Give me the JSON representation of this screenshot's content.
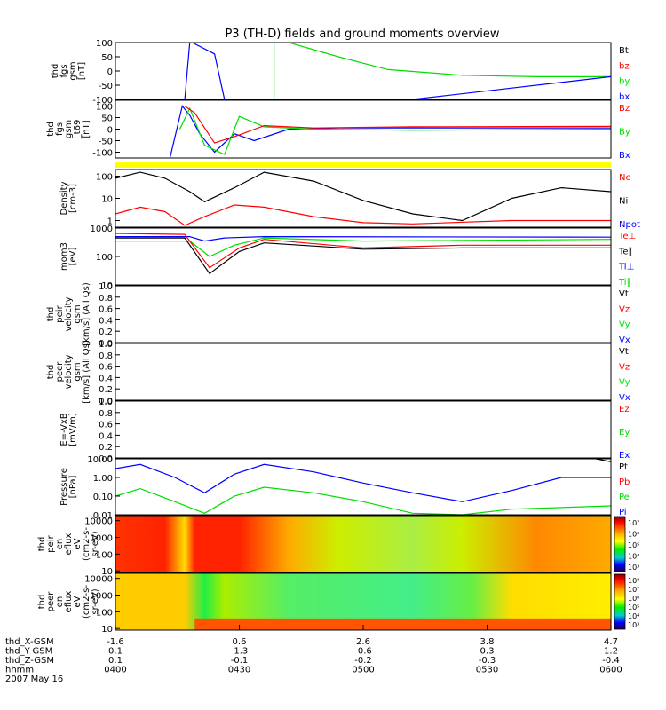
{
  "title": "P3 (TH-D) fields and ground moments overview",
  "colors": {
    "black": "#000000",
    "red": "#ff0000",
    "green": "#00dd00",
    "blue": "#0000ff",
    "yellow": "#ffff00",
    "ylabel": "#000000"
  },
  "time_ticks": [
    "0400",
    "0430",
    "0500",
    "0530",
    "0600"
  ],
  "footer": {
    "rows": [
      {
        "label": "thd_X-GSM",
        "values": [
          "-1.6",
          "0.6",
          "2.6",
          "3.8",
          "4.7"
        ]
      },
      {
        "label": "thd_Y-GSM",
        "values": [
          "0.1",
          "-1.3",
          "-0.6",
          "0.3",
          "1.2"
        ]
      },
      {
        "label": "thd_Z-GSM",
        "values": [
          "0.1",
          "-0.1",
          "-0.2",
          "-0.3",
          "-0.4"
        ]
      },
      {
        "label": "hhmm",
        "values": [
          "0400",
          "0430",
          "0500",
          "0530",
          "0600"
        ]
      }
    ],
    "date": "2007 May 16"
  },
  "chart_data": [
    {
      "type": "line",
      "id": "fgs",
      "ylabel": [
        "thd",
        "fgs",
        "gsm",
        "[nT]"
      ],
      "ylim": [
        -100,
        100
      ],
      "yticks": [
        "100",
        "50",
        "0",
        "-50",
        "-100"
      ],
      "legend": [
        {
          "name": "Bt",
          "color": "#000000"
        },
        {
          "name": "bz",
          "color": "#ff0000"
        },
        {
          "name": "by",
          "color": "#00dd00"
        },
        {
          "name": "bx",
          "color": "#0000ff"
        }
      ],
      "series": [
        {
          "name": "by",
          "color": "#00dd00",
          "x": [
            0.32,
            0.32,
            0.35,
            0.45,
            0.55,
            0.7,
            0.85,
            1.0
          ],
          "y": [
            -100,
            100,
            100,
            50,
            5,
            -15,
            -20,
            -20
          ]
        },
        {
          "name": "bx",
          "color": "#0000ff",
          "x": [
            0.14,
            0.15,
            0.155,
            0.2,
            0.22,
            0.6,
            0.8,
            1.0
          ],
          "y": [
            -100,
            100,
            100,
            60,
            -100,
            -100,
            -60,
            -20
          ]
        }
      ]
    },
    {
      "type": "line",
      "id": "fgs-sm",
      "ylabel": [
        "thd",
        "fgs",
        "gsm",
        "_t69",
        "[nT]"
      ],
      "ylim": [
        -125,
        125
      ],
      "yticks": [
        "100",
        "50",
        "0",
        "-50",
        "-100"
      ],
      "legend": [
        {
          "name": "Bz",
          "color": "#ff0000"
        },
        {
          "name": "By",
          "color": "#00dd00"
        },
        {
          "name": "Bx",
          "color": "#0000ff"
        }
      ],
      "series": [
        {
          "name": "Bx",
          "color": "#0000ff",
          "x": [
            0.11,
            0.135,
            0.15,
            0.17,
            0.2,
            0.24,
            0.28,
            0.35,
            0.45,
            1.0
          ],
          "y": [
            -125,
            100,
            60,
            -20,
            -100,
            -20,
            -50,
            0,
            5,
            5
          ]
        },
        {
          "name": "By",
          "color": "#00dd00",
          "x": [
            0.13,
            0.15,
            0.18,
            0.22,
            0.25,
            0.3,
            0.4,
            0.6,
            1.0
          ],
          "y": [
            0,
            90,
            -70,
            -110,
            55,
            10,
            0,
            -5,
            0
          ]
        },
        {
          "name": "Bz",
          "color": "#ff0000",
          "x": [
            0.14,
            0.16,
            0.2,
            0.25,
            0.3,
            0.4,
            0.6,
            1.0
          ],
          "y": [
            100,
            70,
            -60,
            -25,
            15,
            5,
            10,
            12
          ]
        }
      ]
    },
    {
      "type": "line",
      "id": "density",
      "ylabel": [
        "Density",
        "[cm-3]"
      ],
      "scale": "log",
      "ylim": [
        0.5,
        200
      ],
      "yticks": [
        "100",
        "10",
        "1"
      ],
      "legend": [
        {
          "name": "Ne",
          "color": "#ff0000"
        },
        {
          "name": "Ni",
          "color": "#000000"
        },
        {
          "name": "Npot",
          "color": "#0000ff"
        }
      ],
      "series": [
        {
          "name": "Ni",
          "color": "#000000",
          "x": [
            0.0,
            0.05,
            0.1,
            0.15,
            0.18,
            0.24,
            0.3,
            0.4,
            0.5,
            0.6,
            0.7,
            0.8,
            0.9,
            1.0
          ],
          "y": [
            80,
            150,
            80,
            20,
            7,
            30,
            150,
            60,
            8,
            2,
            1,
            10,
            30,
            20
          ]
        },
        {
          "name": "Ne",
          "color": "#ff0000",
          "x": [
            0.0,
            0.05,
            0.1,
            0.14,
            0.18,
            0.24,
            0.3,
            0.4,
            0.5,
            0.6,
            0.8,
            1.0
          ],
          "y": [
            2,
            4,
            2.5,
            0.6,
            1.5,
            5,
            4,
            1.5,
            0.8,
            0.7,
            1,
            1
          ]
        }
      ]
    },
    {
      "type": "line",
      "id": "moms",
      "ylabel": [
        "mom3",
        "[eV]"
      ],
      "scale": "log",
      "ylim": [
        10,
        1000
      ],
      "yticks": [
        "1000",
        "100",
        "10"
      ],
      "legend": [
        {
          "name": "Te⊥",
          "color": "#ff0000"
        },
        {
          "name": "Te∥",
          "color": "#000000"
        },
        {
          "name": "Ti⊥",
          "color": "#0000ff"
        },
        {
          "name": "Ti∥",
          "color": "#00dd00"
        }
      ],
      "series": [
        {
          "name": "Ti⊥",
          "color": "#0000ff",
          "x": [
            0.0,
            0.15,
            0.18,
            0.22,
            0.3,
            1.0
          ],
          "y": [
            500,
            500,
            350,
            450,
            500,
            480
          ]
        },
        {
          "name": "Ti∥",
          "color": "#00dd00",
          "x": [
            0.0,
            0.15,
            0.19,
            0.24,
            0.3,
            0.5,
            1.0
          ],
          "y": [
            350,
            350,
            100,
            250,
            450,
            350,
            400
          ]
        },
        {
          "name": "Te⊥",
          "color": "#ff0000",
          "x": [
            0.0,
            0.14,
            0.19,
            0.25,
            0.3,
            0.5,
            0.7,
            1.0
          ],
          "y": [
            650,
            600,
            40,
            200,
            400,
            200,
            250,
            250
          ]
        },
        {
          "name": "Te∥",
          "color": "#000000",
          "x": [
            0.0,
            0.14,
            0.19,
            0.25,
            0.3,
            0.5,
            0.7,
            1.0
          ],
          "y": [
            450,
            450,
            25,
            150,
            300,
            180,
            200,
            200
          ]
        }
      ]
    },
    {
      "type": "line",
      "id": "peir-vel",
      "ylabel": [
        "thd",
        "peir",
        "velocity",
        "gsm",
        "[km/s] (All Qs)"
      ],
      "ylim": [
        0,
        1
      ],
      "yticks": [
        "1.0",
        "0.8",
        "0.6",
        "0.4",
        "0.2",
        "0.0"
      ],
      "legend": [
        {
          "name": "Vt",
          "color": "#000000"
        },
        {
          "name": "Vz",
          "color": "#ff0000"
        },
        {
          "name": "Vy",
          "color": "#00dd00"
        },
        {
          "name": "Vx",
          "color": "#0000ff"
        }
      ],
      "series": []
    },
    {
      "type": "line",
      "id": "peer-vel",
      "ylabel": [
        "thd",
        "peer",
        "velocity",
        "gsm",
        "[km/s] (All Qs)"
      ],
      "ylim": [
        0,
        1
      ],
      "yticks": [
        "1.0",
        "0.8",
        "0.6",
        "0.4",
        "0.2",
        "0.0"
      ],
      "legend": [
        {
          "name": "Vt",
          "color": "#000000"
        },
        {
          "name": "Vz",
          "color": "#ff0000"
        },
        {
          "name": "Vy",
          "color": "#00dd00"
        },
        {
          "name": "Vx",
          "color": "#0000ff"
        }
      ],
      "series": []
    },
    {
      "type": "line",
      "id": "efield",
      "ylabel": [
        "E=-VxB",
        "[mV/m]"
      ],
      "ylim": [
        0,
        1
      ],
      "yticks": [
        "1.0",
        "0.8",
        "0.6",
        "0.4",
        "0.2",
        "0.0"
      ],
      "legend": [
        {
          "name": "Ez",
          "color": "#ff0000"
        },
        {
          "name": "Ey",
          "color": "#00dd00"
        },
        {
          "name": "Ex",
          "color": "#0000ff"
        }
      ],
      "series": []
    },
    {
      "type": "line",
      "id": "pressure",
      "ylabel": [
        "Pressure",
        "[nPa]"
      ],
      "scale": "log",
      "ylim": [
        0.01,
        10
      ],
      "yticks": [
        "10.00",
        "1.00",
        "0.10",
        "0.01"
      ],
      "legend": [
        {
          "name": "Pt",
          "color": "#000000"
        },
        {
          "name": "Pb",
          "color": "#ff0000"
        },
        {
          "name": "Pe",
          "color": "#00dd00"
        },
        {
          "name": "Pi",
          "color": "#0000ff"
        }
      ],
      "series": [
        {
          "name": "Pi",
          "color": "#0000ff",
          "x": [
            0.0,
            0.05,
            0.12,
            0.18,
            0.24,
            0.3,
            0.4,
            0.5,
            0.6,
            0.7,
            0.8,
            0.9,
            1.0
          ],
          "y": [
            3,
            5,
            1,
            0.15,
            1.5,
            5,
            2,
            0.5,
            0.15,
            0.05,
            0.2,
            1,
            1
          ]
        },
        {
          "name": "Pe",
          "color": "#00dd00",
          "x": [
            0.0,
            0.05,
            0.12,
            0.18,
            0.24,
            0.3,
            0.4,
            0.5,
            0.6,
            0.7,
            0.8,
            1.0
          ],
          "y": [
            0.1,
            0.25,
            0.05,
            0.012,
            0.1,
            0.3,
            0.15,
            0.05,
            0.012,
            0.01,
            0.02,
            0.03
          ]
        },
        {
          "name": "Pt",
          "color": "#000000",
          "x": [
            0.97,
            1.0
          ],
          "y": [
            10,
            7
          ]
        }
      ]
    },
    {
      "type": "heatmap",
      "id": "peir-spec",
      "ylabel": [
        "thd",
        "peir",
        "en",
        "eflux",
        "eV",
        "(cm2-s-",
        "sr-eV)"
      ],
      "scale": "log",
      "ylim": [
        8,
        20000
      ],
      "yticks": [
        "10000",
        "1000",
        "100",
        "10"
      ],
      "colorbar": {
        "ticks": [
          "10⁷",
          "10⁶",
          "10⁵",
          "10⁴",
          "10³"
        ]
      }
    },
    {
      "type": "heatmap",
      "id": "peer-spec",
      "ylabel": [
        "thd",
        "peer",
        "en",
        "eflux",
        "eV",
        "(cm2-s-",
        "sr-eV)"
      ],
      "scale": "log",
      "ylim": [
        8,
        20000
      ],
      "yticks": [
        "10000",
        "1000",
        "100",
        "10"
      ],
      "colorbar": {
        "ticks": [
          "10⁸",
          "10⁷",
          "10⁶",
          "10⁵",
          "10⁴",
          "10³"
        ]
      }
    }
  ]
}
